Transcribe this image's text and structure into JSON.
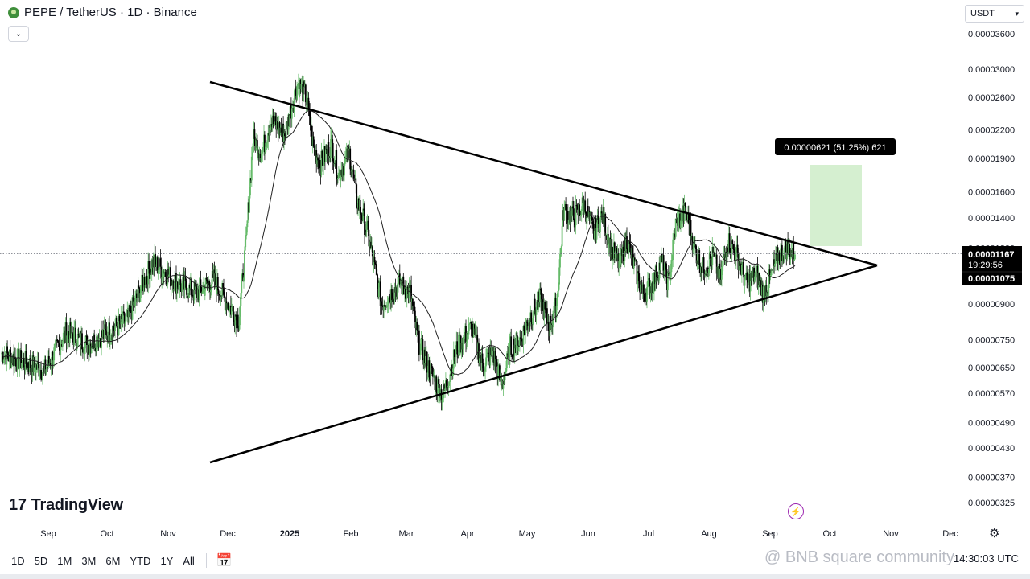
{
  "header": {
    "symbol_line": "PEPE / TetherUS · 1D · Binance",
    "currency": "USDT"
  },
  "bottom_bar": {
    "ranges": [
      "1D",
      "5D",
      "1M",
      "3M",
      "6M",
      "YTD",
      "1Y",
      "All"
    ],
    "time": "14:30:03 UTC"
  },
  "branding": {
    "logo_text": "TradingView",
    "watermark": "@ BNB square community"
  },
  "chart_data": {
    "type": "candlestick",
    "price_axis": {
      "ticks": [
        "0.00003600",
        "0.00003000",
        "0.00002600",
        "0.00002200",
        "0.00001900",
        "0.00001600",
        "0.00001400",
        "0.00000900",
        "0.00000750",
        "0.00000650",
        "0.00000570",
        "0.00000490",
        "0.00000430",
        "0.00000370",
        "0.00000325"
      ],
      "scale": "log"
    },
    "time_axis": {
      "ticks": [
        "Sep",
        "Oct",
        "Nov",
        "Dec",
        "2025",
        "Feb",
        "Mar",
        "Apr",
        "May",
        "Jun",
        "Jul",
        "Aug",
        "Sep",
        "Oct",
        "Nov",
        "Dec"
      ]
    },
    "last_price": "0.00001167",
    "countdown": "19:29:56",
    "ma_value": "0.00001075",
    "partially_hidden_label": "0.00001200",
    "measure_label": "0.00000621 (51.25%) 621",
    "moving_average": "trailing average line",
    "pattern": "symmetrical triangle",
    "colors": {
      "up": "#66bb6a",
      "down": "#000000",
      "ma": "#222222",
      "measure_fill": "#d5efd0",
      "label_bg": "#000000"
    },
    "price_path": [
      [
        7e-06,
        60
      ],
      [
        6.4e-06,
        30
      ],
      [
        7.8e-06,
        30
      ],
      [
        7.3e-06,
        55
      ],
      [
        8.3e-06,
        35
      ],
      [
        1.12e-05,
        35
      ],
      [
        1e-05,
        25
      ],
      [
        9.5e-06,
        25
      ],
      [
        1.02e-05,
        20
      ],
      [
        9e-06,
        15
      ],
      [
        8.3e-06,
        10
      ],
      [
        1.23e-05,
        10
      ],
      [
        2.1e-05,
        12
      ],
      [
        1.95e-05,
        12
      ],
      [
        2.3e-05,
        20
      ],
      [
        2.15e-05,
        18
      ],
      [
        2.8e-05,
        12
      ],
      [
        2.6e-05,
        10
      ],
      [
        2e-05,
        10
      ],
      [
        1.85e-05,
        15
      ],
      [
        2.05e-05,
        10
      ],
      [
        1.75e-05,
        15
      ],
      [
        1.95e-05,
        10
      ],
      [
        1.55e-05,
        15
      ],
      [
        1.3e-05,
        20
      ],
      [
        9e-06,
        25
      ],
      [
        1e-05,
        15
      ],
      [
        9.5e-06,
        10
      ],
      [
        7.5e-06,
        15
      ],
      [
        6.5e-06,
        20
      ],
      [
        5.6e-06,
        20
      ],
      [
        7.2e-06,
        20
      ],
      [
        8e-06,
        15
      ],
      [
        6.6e-06,
        15
      ],
      [
        7e-06,
        12
      ],
      [
        5.9e-06,
        12
      ],
      [
        7.2e-06,
        14
      ],
      [
        7.5e-06,
        14
      ],
      [
        8.5e-06,
        14
      ],
      [
        9.2e-06,
        12
      ],
      [
        8e-06,
        10
      ],
      [
        9e-06,
        10
      ],
      [
        1.45e-05,
        14
      ],
      [
        1.4e-05,
        14
      ],
      [
        1.5e-05,
        14
      ],
      [
        1.3e-05,
        12
      ],
      [
        1.42e-05,
        12
      ],
      [
        1.2e-05,
        12
      ],
      [
        1.1e-05,
        10
      ],
      [
        1.25e-05,
        10
      ],
      [
        1.1e-05,
        12
      ],
      [
        9.5e-06,
        14
      ],
      [
        1e-05,
        12
      ],
      [
        1.12e-05,
        10
      ],
      [
        1e-05,
        10
      ],
      [
        1.35e-05,
        14
      ],
      [
        1.45e-05,
        12
      ],
      [
        1.2e-05,
        12
      ],
      [
        1.08e-05,
        14
      ],
      [
        1.15e-05,
        10
      ],
      [
        1.02e-05,
        10
      ],
      [
        1.25e-05,
        14
      ],
      [
        1.15e-05,
        12
      ],
      [
        1e-05,
        14
      ],
      [
        1.05e-05,
        10
      ],
      [
        9.5e-06,
        10
      ],
      [
        1.03e-05,
        10
      ],
      [
        1.15e-05,
        12
      ],
      [
        1.2e-05,
        12
      ],
      [
        1.16e-05,
        20
      ]
    ]
  }
}
